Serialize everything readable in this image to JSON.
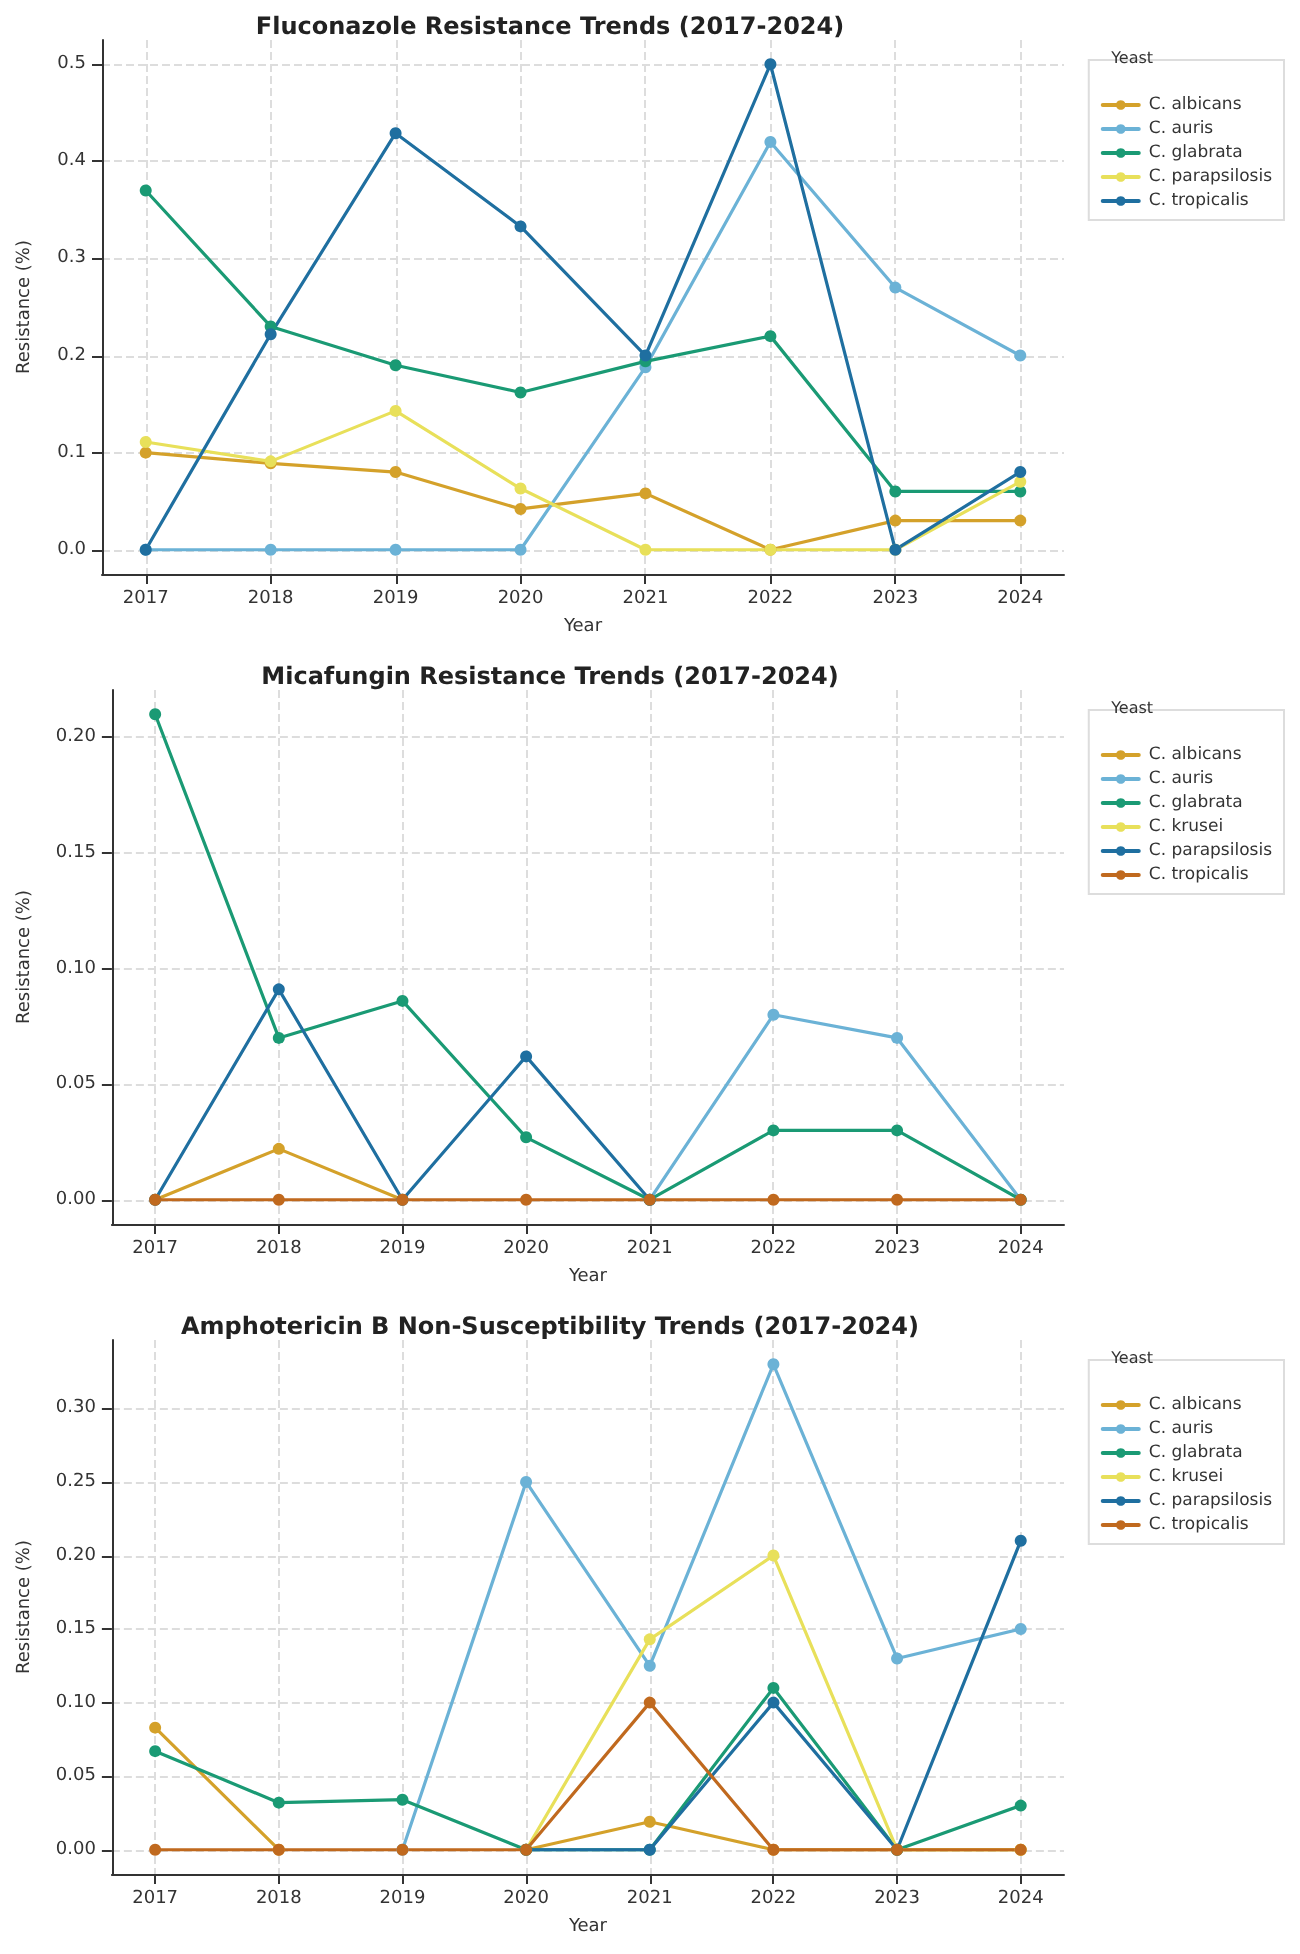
{
  "chart_data": [
    {
      "type": "line",
      "title": "Fluconazole Resistance Trends (2017-2024)",
      "xlabel": "Year",
      "ylabel": "Resistance (%)",
      "legend_title": "Yeast",
      "legend": "right",
      "grid": true,
      "marker": "circle",
      "line_style": "solid",
      "x": [
        2017,
        2018,
        2019,
        2020,
        2021,
        2022,
        2023,
        2024
      ],
      "xlim": [
        2016.65,
        2024.35
      ],
      "xticks": [
        2017,
        2018,
        2019,
        2020,
        2021,
        2022,
        2023,
        2024
      ],
      "ylim": [
        -0.025,
        0.525
      ],
      "yticks": [
        {
          "value": 0,
          "label": "0.0"
        },
        {
          "value": 0.1,
          "label": "0.1"
        },
        {
          "value": 0.2,
          "label": "0.2"
        },
        {
          "value": 0.3,
          "label": "0.3"
        },
        {
          "value": 0.4,
          "label": "0.4"
        },
        {
          "value": 0.5,
          "label": "0.5"
        }
      ],
      "series": [
        {
          "name": "C. albicans",
          "color": "#d4a12a",
          "values": [
            0.1,
            0.089,
            0.08,
            0.042,
            0.058,
            0,
            0.03,
            0.03
          ]
        },
        {
          "name": "C. auris",
          "color": "#6bb2d6",
          "values": [
            0,
            0,
            0,
            0,
            0.188,
            0.42,
            0.27,
            0.2
          ]
        },
        {
          "name": "C. glabrata",
          "color": "#1a9a74",
          "values": [
            0.37,
            0.23,
            0.19,
            0.162,
            0.194,
            0.22,
            0.06,
            0.06
          ]
        },
        {
          "name": "C. parapsilosis",
          "color": "#e8e05a",
          "values": [
            0.111,
            0.091,
            0.143,
            0.063,
            0,
            0,
            0,
            0.07
          ]
        },
        {
          "name": "C. tropicalis",
          "color": "#1f6fa0",
          "values": [
            0,
            0.222,
            0.429,
            0.333,
            0.2,
            0.5,
            0,
            0.08
          ]
        }
      ]
    },
    {
      "type": "line",
      "title": "Micafungin Resistance Trends (2017-2024)",
      "xlabel": "Year",
      "ylabel": "Resistance (%)",
      "legend_title": "Yeast",
      "legend": "right",
      "grid": true,
      "marker": "circle",
      "line_style": "solid",
      "x": [
        2017,
        2018,
        2019,
        2020,
        2021,
        2022,
        2023,
        2024
      ],
      "xlim": [
        2016.65,
        2024.35
      ],
      "xticks": [
        2017,
        2018,
        2019,
        2020,
        2021,
        2022,
        2023,
        2024
      ],
      "ylim": [
        -0.0105,
        0.2205
      ],
      "yticks": [
        {
          "value": 0,
          "label": "0.00"
        },
        {
          "value": 0.05,
          "label": "0.05"
        },
        {
          "value": 0.1,
          "label": "0.10"
        },
        {
          "value": 0.15,
          "label": "0.15"
        },
        {
          "value": 0.2,
          "label": "0.20"
        }
      ],
      "series": [
        {
          "name": "C. albicans",
          "color": "#d4a12a",
          "values": [
            0,
            0.022,
            0,
            null,
            null,
            null,
            null,
            null
          ]
        },
        {
          "name": "C. auris",
          "color": "#6bb2d6",
          "values": [
            null,
            null,
            null,
            null,
            0,
            0.08,
            0.07,
            0
          ]
        },
        {
          "name": "C. glabrata",
          "color": "#1a9a74",
          "values": [
            0.21,
            0.07,
            0.086,
            0.027,
            0,
            0.03,
            0.03,
            0
          ]
        },
        {
          "name": "C. krusei",
          "color": "#e8e05a",
          "values": [
            null,
            null,
            null,
            null,
            null,
            null,
            null,
            null
          ]
        },
        {
          "name": "C. parapsilosis",
          "color": "#1f6fa0",
          "values": [
            0,
            0.091,
            0,
            0.062,
            0,
            null,
            null,
            null
          ]
        },
        {
          "name": "C. tropicalis",
          "color": "#c0691e",
          "values": [
            0,
            0,
            0,
            0,
            0,
            0,
            0,
            0
          ]
        }
      ]
    },
    {
      "type": "line",
      "title": "Amphotericin B Non-Susceptibility Trends (2017-2024)",
      "xlabel": "Year",
      "ylabel": "Resistance (%)",
      "legend_title": "Yeast",
      "legend": "right",
      "grid": true,
      "marker": "circle",
      "line_style": "solid",
      "x": [
        2017,
        2018,
        2019,
        2020,
        2021,
        2022,
        2023,
        2024
      ],
      "xlim": [
        2016.65,
        2024.35
      ],
      "xticks": [
        2017,
        2018,
        2019,
        2020,
        2021,
        2022,
        2023,
        2024
      ],
      "ylim": [
        -0.0165,
        0.3465
      ],
      "yticks": [
        {
          "value": 0,
          "label": "0.00"
        },
        {
          "value": 0.05,
          "label": "0.05"
        },
        {
          "value": 0.1,
          "label": "0.10"
        },
        {
          "value": 0.15,
          "label": "0.15"
        },
        {
          "value": 0.2,
          "label": "0.20"
        },
        {
          "value": 0.25,
          "label": "0.25"
        },
        {
          "value": 0.3,
          "label": "0.30"
        }
      ],
      "series": [
        {
          "name": "C. albicans",
          "color": "#d4a12a",
          "values": [
            0.083,
            0,
            null,
            0,
            0.019,
            0,
            0,
            0
          ]
        },
        {
          "name": "C. auris",
          "color": "#6bb2d6",
          "values": [
            null,
            null,
            0,
            0.25,
            0.125,
            0.33,
            0.13,
            0.15
          ]
        },
        {
          "name": "C. glabrata",
          "color": "#1a9a74",
          "values": [
            0.067,
            0.032,
            0.034,
            0,
            0,
            0.11,
            0,
            0.03
          ]
        },
        {
          "name": "C. krusei",
          "color": "#e8e05a",
          "values": [
            null,
            null,
            null,
            0,
            0.143,
            0.2,
            0,
            0
          ]
        },
        {
          "name": "C. parapsilosis",
          "color": "#1f6fa0",
          "values": [
            null,
            null,
            null,
            0,
            0,
            0.1,
            0,
            0.21
          ]
        },
        {
          "name": "C. tropicalis",
          "color": "#c0691e",
          "values": [
            0,
            0,
            0,
            0,
            0.1,
            0,
            0,
            0
          ]
        }
      ]
    }
  ]
}
